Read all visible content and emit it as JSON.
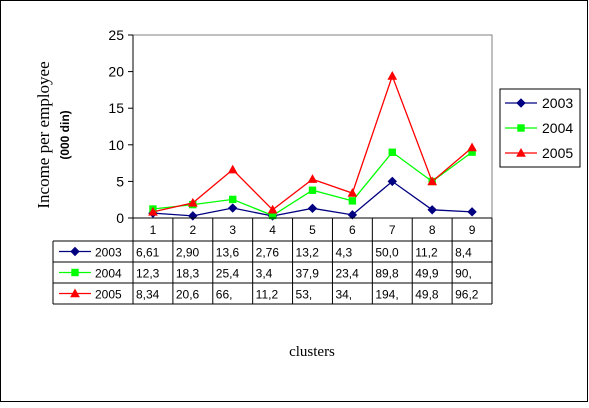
{
  "chart_data": {
    "type": "line",
    "ylabel_main": "Income per employee",
    "ylabel_sub": "(000 din)",
    "xlabel": "clusters",
    "ylim": [
      0,
      25
    ],
    "yticks": [
      0,
      5,
      10,
      15,
      20,
      25
    ],
    "categories": [
      "1",
      "2",
      "3",
      "4",
      "5",
      "6",
      "7",
      "8",
      "9"
    ],
    "series": [
      {
        "name": "2003",
        "color": "#000080",
        "marker": "diamond",
        "values": [
          0.661,
          0.29,
          1.36,
          0.276,
          1.32,
          0.43,
          5.0,
          1.12,
          0.84
        ],
        "table": [
          "6,61",
          "2,90",
          "13,6",
          "2,76",
          "13,2",
          "4,3",
          "50,0",
          "11,2",
          "8,4"
        ]
      },
      {
        "name": "2004",
        "color": "#00ff00",
        "marker": "square",
        "values": [
          1.23,
          1.83,
          2.54,
          0.34,
          3.79,
          2.34,
          8.98,
          4.99,
          9.0
        ],
        "table": [
          "12,3",
          "18,3",
          "25,4",
          "3,4",
          "37,9",
          "23,4",
          "89,8",
          "49,9",
          "90,"
        ]
      },
      {
        "name": "2005",
        "color": "#ff0000",
        "marker": "triangle",
        "values": [
          0.834,
          2.06,
          6.6,
          1.12,
          5.3,
          3.4,
          19.4,
          4.98,
          9.62
        ],
        "table": [
          "8,34",
          "20,6",
          "66,",
          "11,2",
          "53,",
          "34,",
          "194,",
          "49,8",
          "96,2"
        ]
      }
    ],
    "legend_position": "right",
    "grid": false
  }
}
